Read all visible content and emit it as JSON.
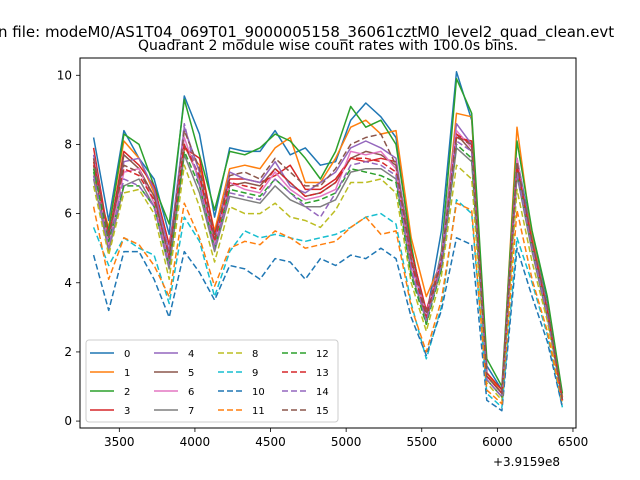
{
  "suptitle": "n file: modeM0/AS1T04_069T01_9000005158_36061cztM0_level2_quad_clean.evt",
  "chart_data": {
    "type": "line",
    "title": "Quadrant 2 module wise count rates with 100.0s bins.",
    "xlabel": "",
    "ylabel": "",
    "x_offset_label": "+3.9159e8",
    "xlim": [
      3240,
      6520
    ],
    "ylim": [
      -0.2,
      10.5
    ],
    "xticks": [
      "3500",
      "4000",
      "4500",
      "5000",
      "5500",
      "6000",
      "6500"
    ],
    "xtick_values": [
      3500,
      4000,
      4500,
      5000,
      5500,
      6000,
      6500
    ],
    "yticks": [
      "0",
      "2",
      "4",
      "6",
      "8",
      "10"
    ],
    "ytick_values": [
      0,
      2,
      4,
      6,
      8,
      10
    ],
    "grid": false,
    "legend": "lower-left",
    "x": [
      3330,
      3430,
      3530,
      3630,
      3730,
      3830,
      3930,
      4030,
      4130,
      4230,
      4330,
      4430,
      4530,
      4630,
      4730,
      4830,
      4930,
      5030,
      5130,
      5230,
      5330,
      5430,
      5530,
      5630,
      5730,
      5830,
      5930,
      6030,
      6130,
      6230,
      6330,
      6430
    ],
    "series": [
      {
        "name": "0",
        "color": "#1f77b4",
        "dash": "",
        "values": [
          8.2,
          5.8,
          8.4,
          7.6,
          7.0,
          5.4,
          9.4,
          8.3,
          5.9,
          7.9,
          7.8,
          7.8,
          8.4,
          7.7,
          7.9,
          7.4,
          7.5,
          8.7,
          9.2,
          8.8,
          8.2,
          5.0,
          3.0,
          5.5,
          10.1,
          8.7,
          1.6,
          0.9,
          7.6,
          5.4,
          3.5,
          0.7
        ]
      },
      {
        "name": "1",
        "color": "#ff7f0e",
        "dash": "",
        "values": [
          7.1,
          5.6,
          8.1,
          7.6,
          6.6,
          4.6,
          7.9,
          7.4,
          5.5,
          7.3,
          7.4,
          7.3,
          7.9,
          8.2,
          6.9,
          6.9,
          7.6,
          8.5,
          8.7,
          8.3,
          8.4,
          5.3,
          3.6,
          4.6,
          8.9,
          8.8,
          1.4,
          0.8,
          8.5,
          5.3,
          3.3,
          0.7
        ]
      },
      {
        "name": "2",
        "color": "#2ca02c",
        "dash": "",
        "values": [
          7.2,
          5.5,
          8.3,
          8.0,
          6.8,
          5.7,
          9.3,
          7.7,
          6.1,
          7.8,
          7.7,
          7.9,
          8.3,
          8.1,
          7.6,
          7.0,
          7.8,
          9.1,
          8.5,
          8.7,
          8.0,
          5.1,
          2.8,
          4.9,
          9.9,
          8.9,
          1.8,
          1.0,
          8.1,
          5.5,
          3.6,
          0.8
        ]
      },
      {
        "name": "3",
        "color": "#d62728",
        "dash": "",
        "values": [
          7.9,
          5.3,
          7.8,
          7.4,
          6.8,
          5.1,
          7.9,
          7.6,
          5.4,
          7.0,
          7.0,
          6.9,
          7.1,
          7.4,
          6.7,
          6.7,
          7.0,
          7.6,
          7.5,
          7.6,
          7.5,
          4.9,
          3.2,
          4.7,
          8.2,
          8.1,
          1.4,
          0.9,
          7.3,
          5.1,
          3.2,
          0.6
        ]
      },
      {
        "name": "4",
        "color": "#9467bd",
        "dash": "",
        "values": [
          7.7,
          5.2,
          7.5,
          7.6,
          6.7,
          4.9,
          8.5,
          7.2,
          5.2,
          7.2,
          7.0,
          6.9,
          7.5,
          6.8,
          6.6,
          6.9,
          7.2,
          7.9,
          8.1,
          7.9,
          7.6,
          4.7,
          3.1,
          4.8,
          8.6,
          8.0,
          1.3,
          0.8,
          7.6,
          5.2,
          3.3,
          0.6
        ]
      },
      {
        "name": "5",
        "color": "#8c564b",
        "dash": "",
        "values": [
          7.4,
          5.0,
          7.7,
          7.3,
          6.5,
          4.7,
          8.0,
          7.0,
          5.0,
          6.8,
          6.9,
          6.8,
          7.3,
          6.9,
          6.5,
          6.6,
          6.9,
          7.6,
          7.8,
          7.7,
          7.4,
          4.6,
          3.0,
          4.6,
          8.3,
          7.8,
          1.3,
          0.8,
          7.4,
          5.0,
          3.2,
          0.6
        ]
      },
      {
        "name": "6",
        "color": "#e377c2",
        "dash": "",
        "values": [
          7.6,
          5.1,
          7.2,
          7.3,
          6.3,
          4.6,
          8.2,
          6.9,
          5.1,
          6.9,
          6.7,
          6.6,
          7.2,
          6.7,
          6.4,
          6.5,
          6.7,
          7.8,
          7.7,
          7.8,
          7.3,
          4.5,
          3.1,
          4.7,
          8.4,
          7.9,
          1.2,
          0.7,
          7.6,
          5.1,
          3.1,
          0.6
        ]
      },
      {
        "name": "7",
        "color": "#7f7f7f",
        "dash": "",
        "values": [
          7.0,
          4.9,
          6.8,
          7.0,
          6.2,
          4.4,
          7.7,
          6.6,
          4.9,
          6.5,
          6.4,
          6.3,
          6.8,
          6.4,
          6.2,
          6.2,
          6.4,
          7.2,
          7.3,
          7.3,
          7.0,
          4.3,
          2.9,
          4.4,
          7.9,
          7.5,
          1.2,
          0.7,
          7.1,
          4.9,
          3.0,
          0.6
        ]
      },
      {
        "name": "8",
        "color": "#bcbd22",
        "dash": "6,3",
        "values": [
          6.8,
          4.8,
          6.6,
          6.7,
          6.0,
          4.1,
          7.4,
          6.2,
          4.6,
          6.2,
          6.0,
          6.0,
          6.3,
          5.9,
          5.8,
          5.6,
          6.1,
          6.9,
          6.9,
          7.0,
          6.6,
          4.0,
          2.6,
          4.2,
          7.4,
          7.0,
          1.1,
          0.6,
          6.7,
          4.6,
          2.9,
          0.5
        ]
      },
      {
        "name": "9",
        "color": "#17becf",
        "dash": "6,3",
        "values": [
          5.6,
          4.5,
          5.3,
          5.0,
          4.8,
          3.4,
          5.9,
          5.2,
          3.6,
          4.9,
          5.5,
          5.3,
          5.4,
          5.3,
          5.2,
          5.3,
          5.4,
          5.6,
          5.9,
          6.0,
          5.7,
          3.4,
          1.8,
          3.3,
          6.4,
          6.0,
          0.8,
          0.4,
          5.3,
          4.0,
          2.5,
          0.4
        ]
      },
      {
        "name": "10",
        "color": "#1f77b4",
        "dash": "6,3",
        "values": [
          4.8,
          3.2,
          4.9,
          4.9,
          4.1,
          3.0,
          4.9,
          4.3,
          3.5,
          4.5,
          4.4,
          4.1,
          4.7,
          4.6,
          4.1,
          4.7,
          4.5,
          4.8,
          4.7,
          5.0,
          4.7,
          3.0,
          1.9,
          3.2,
          5.3,
          5.1,
          0.6,
          0.3,
          5.0,
          3.6,
          2.3,
          0.4
        ]
      },
      {
        "name": "11",
        "color": "#ff7f0e",
        "dash": "6,3",
        "values": [
          6.2,
          4.1,
          5.3,
          5.1,
          4.5,
          3.6,
          6.3,
          5.3,
          3.9,
          5.0,
          5.2,
          5.1,
          5.5,
          5.3,
          5.0,
          5.1,
          5.2,
          5.6,
          5.9,
          5.4,
          5.5,
          3.3,
          2.0,
          3.5,
          6.3,
          6.1,
          0.9,
          0.5,
          6.1,
          4.1,
          2.6,
          0.5
        ]
      },
      {
        "name": "12",
        "color": "#2ca02c",
        "dash": "6,3",
        "values": [
          7.3,
          5.2,
          6.8,
          6.8,
          6.2,
          4.5,
          7.8,
          6.8,
          5.0,
          6.7,
          6.6,
          6.5,
          7.0,
          6.6,
          6.3,
          6.4,
          6.6,
          7.3,
          7.2,
          7.1,
          6.9,
          4.2,
          2.8,
          4.4,
          8.0,
          7.6,
          1.2,
          0.7,
          7.2,
          5.0,
          3.1,
          0.6
        ]
      },
      {
        "name": "13",
        "color": "#d62728",
        "dash": "6,3",
        "values": [
          7.5,
          5.4,
          7.3,
          7.1,
          6.4,
          4.8,
          8.0,
          7.1,
          5.2,
          6.9,
          6.8,
          6.7,
          7.3,
          6.9,
          6.5,
          6.6,
          6.9,
          7.6,
          7.6,
          7.5,
          7.2,
          4.6,
          3.0,
          4.6,
          8.3,
          8.0,
          1.3,
          0.8,
          7.4,
          5.2,
          3.2,
          0.6
        ]
      },
      {
        "name": "14",
        "color": "#9467bd",
        "dash": "6,3",
        "values": [
          7.1,
          5.0,
          7.0,
          6.8,
          6.2,
          4.5,
          8.6,
          6.8,
          5.0,
          6.6,
          6.5,
          6.4,
          7.0,
          6.6,
          6.2,
          5.9,
          6.6,
          7.4,
          7.5,
          7.4,
          7.1,
          4.4,
          2.9,
          4.5,
          8.1,
          7.8,
          1.2,
          0.7,
          7.2,
          5.0,
          3.1,
          0.6
        ]
      },
      {
        "name": "15",
        "color": "#8c564b",
        "dash": "6,3",
        "values": [
          7.6,
          5.3,
          7.4,
          7.2,
          6.5,
          4.7,
          8.4,
          7.3,
          5.3,
          7.1,
          7.2,
          7.0,
          7.6,
          7.2,
          6.8,
          6.8,
          7.3,
          8.0,
          8.2,
          8.3,
          7.4,
          4.7,
          3.1,
          4.7,
          8.2,
          8.0,
          1.3,
          0.8,
          7.5,
          5.2,
          3.3,
          0.6
        ]
      }
    ]
  }
}
